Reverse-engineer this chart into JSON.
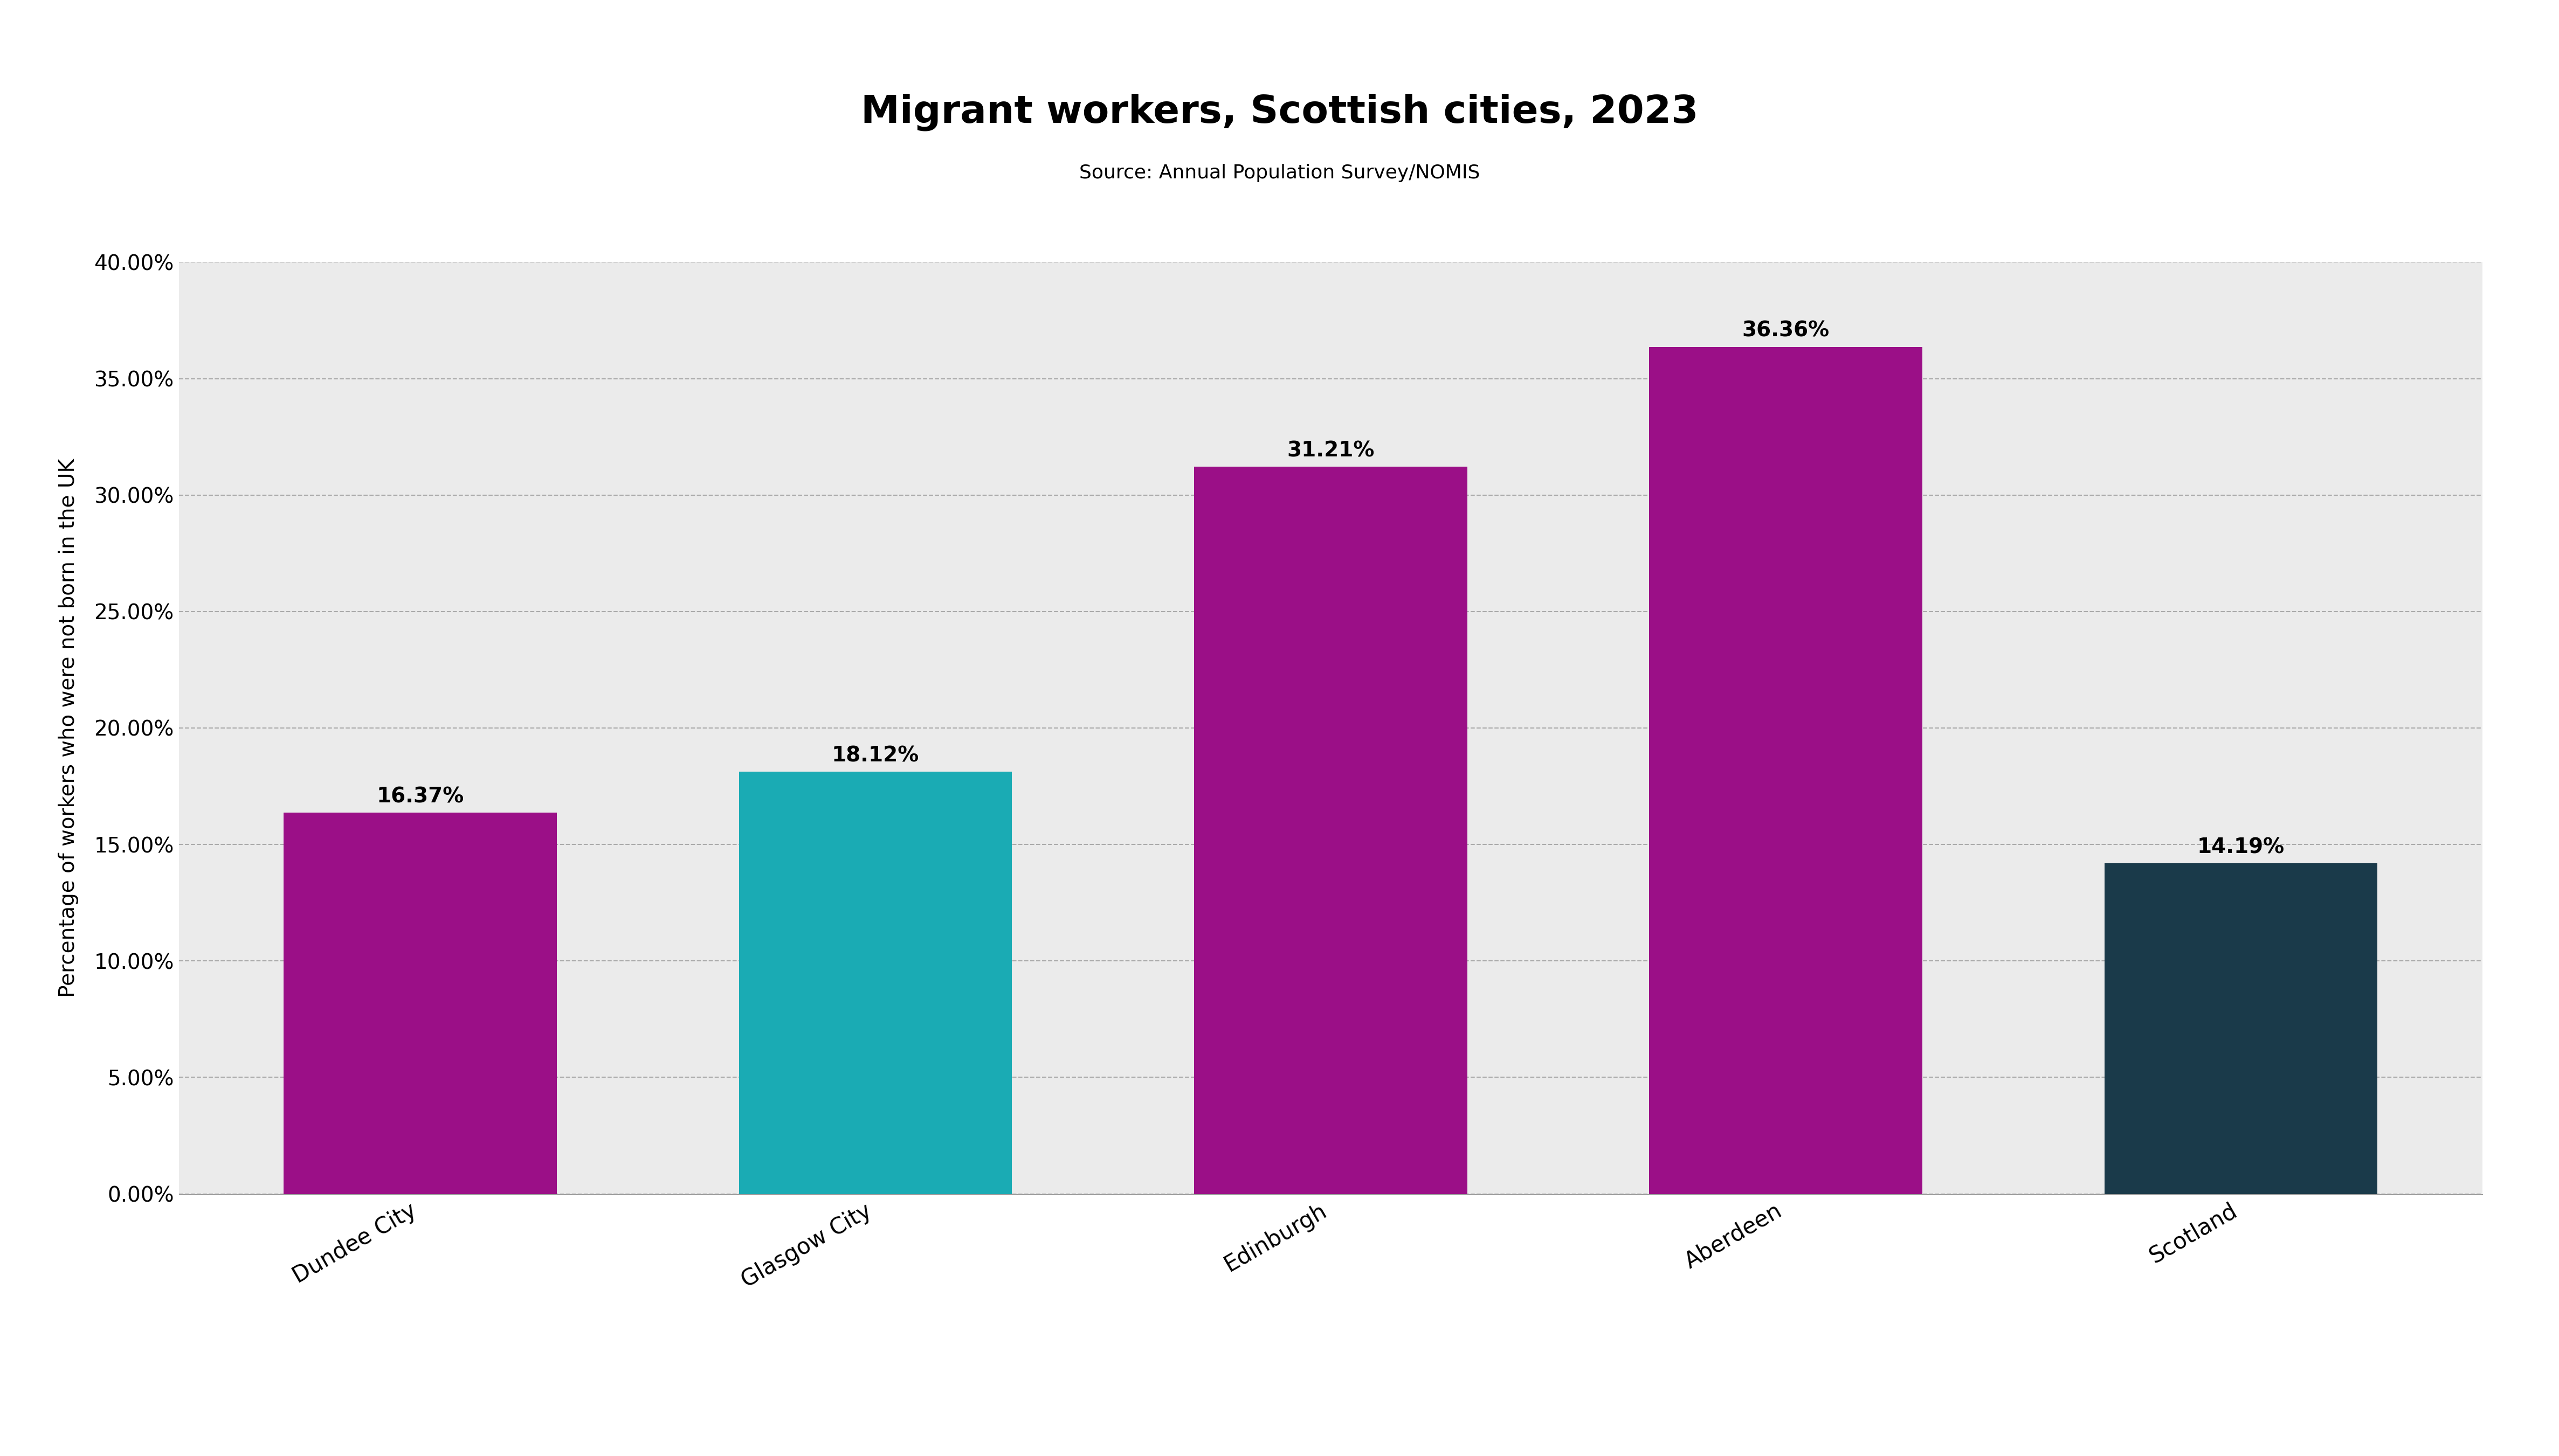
{
  "categories": [
    "Dundee City",
    "Glasgow City",
    "Edinburgh",
    "Aberdeen",
    "Scotland"
  ],
  "values": [
    16.37,
    18.12,
    31.21,
    36.36,
    14.19
  ],
  "bar_colors": [
    "#9B0F87",
    "#1AABB4",
    "#9B0F87",
    "#9B0F87",
    "#1A3A4A"
  ],
  "labels": [
    "16.37%",
    "18.12%",
    "31.21%",
    "36.36%",
    "14.19%"
  ],
  "title": "Migrant workers, Scottish cities, 2023",
  "subtitle": "Source: Annual Population Survey/NOMIS",
  "ylabel": "Percentage of workers who were not born in the UK",
  "ylim": [
    0,
    40
  ],
  "yticks": [
    0,
    5,
    10,
    15,
    20,
    25,
    30,
    35,
    40
  ],
  "ytick_labels": [
    "0.00%",
    "5.00%",
    "10.00%",
    "15.00%",
    "20.00%",
    "25.00%",
    "30.00%",
    "35.00%",
    "40.00%"
  ],
  "background_color": "#FFFFFF",
  "plot_bg_color": "#EBEBEB",
  "title_fontsize": 52,
  "subtitle_fontsize": 26,
  "ylabel_fontsize": 28,
  "tick_fontsize": 28,
  "label_fontsize": 28,
  "xtick_fontsize": 30,
  "bar_width": 0.6
}
